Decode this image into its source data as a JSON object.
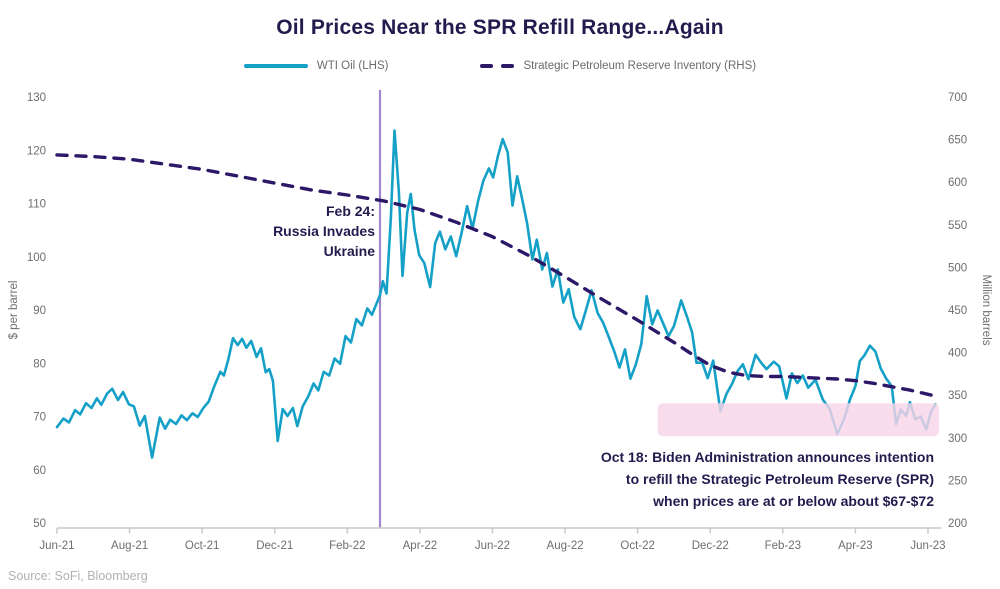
{
  "title": "Oil Prices Near the SPR Refill Range...Again",
  "legend": {
    "wti_label": "WTI Oil (LHS)",
    "spr_label": "Strategic Petroleum Reserve Inventory (RHS)"
  },
  "source": "Source: SoFi, Bloomberg",
  "colors": {
    "navy": "#221b4e",
    "wti": "#14a0c7",
    "spr": "#2d1868",
    "event_line": "#a188cd",
    "band": "#f9d4e9",
    "axis_text": "#6e6e6e",
    "axis_line": "#c9c9c9"
  },
  "chart_data": {
    "type": "line",
    "title": "Oil Prices Near the SPR Refill Range...Again",
    "x_unit": "months since Jun-2021",
    "x_ticks": {
      "months": [
        0,
        2,
        4,
        6,
        8,
        10,
        12,
        14,
        16,
        18,
        20,
        22,
        24
      ],
      "labels": [
        "Jun-21",
        "Aug-21",
        "Oct-21",
        "Dec-21",
        "Feb-22",
        "Apr-22",
        "Jun-22",
        "Aug-22",
        "Oct-22",
        "Dec-22",
        "Feb-23",
        "Apr-23",
        "Jun-23"
      ]
    },
    "left_axis": {
      "label": "$ per barrel",
      "min": 50,
      "max": 130,
      "tick_step": 10
    },
    "right_axis": {
      "label": "Million barrels",
      "min": 200,
      "max": 700,
      "tick_step": 50
    },
    "grid": false,
    "legend_position": "top-center",
    "series": [
      {
        "name": "WTI Oil (LHS)",
        "axis": "left",
        "style": "solid",
        "color": "#14a0c7",
        "points": [
          [
            0,
            68
          ],
          [
            0.18,
            69.6
          ],
          [
            0.33,
            68.9
          ],
          [
            0.5,
            71.2
          ],
          [
            0.64,
            70.4
          ],
          [
            0.8,
            72.5
          ],
          [
            0.95,
            71.6
          ],
          [
            1.1,
            73.4
          ],
          [
            1.22,
            72.2
          ],
          [
            1.38,
            74.3
          ],
          [
            1.52,
            75.2
          ],
          [
            1.68,
            73.1
          ],
          [
            1.82,
            74.6
          ],
          [
            1.98,
            72.3
          ],
          [
            2.12,
            71.9
          ],
          [
            2.28,
            68.3
          ],
          [
            2.42,
            70.1
          ],
          [
            2.62,
            62.3
          ],
          [
            2.83,
            69.8
          ],
          [
            2.98,
            67.7
          ],
          [
            3.12,
            69.4
          ],
          [
            3.28,
            68.6
          ],
          [
            3.43,
            70.2
          ],
          [
            3.58,
            69.3
          ],
          [
            3.73,
            70.6
          ],
          [
            3.88,
            69.9
          ],
          [
            4.03,
            71.6
          ],
          [
            4.18,
            72.8
          ],
          [
            4.33,
            75.6
          ],
          [
            4.5,
            78.4
          ],
          [
            4.6,
            77.7
          ],
          [
            4.72,
            80.7
          ],
          [
            4.85,
            84.7
          ],
          [
            4.98,
            83.4
          ],
          [
            5.1,
            84.6
          ],
          [
            5.22,
            82.9
          ],
          [
            5.35,
            84.2
          ],
          [
            5.5,
            81.2
          ],
          [
            5.62,
            82.8
          ],
          [
            5.75,
            78.3
          ],
          [
            5.85,
            78.9
          ],
          [
            5.95,
            76.7
          ],
          [
            6.08,
            65.4
          ],
          [
            6.22,
            71.4
          ],
          [
            6.35,
            70.1
          ],
          [
            6.5,
            71.6
          ],
          [
            6.62,
            68.2
          ],
          [
            6.77,
            71.9
          ],
          [
            6.92,
            73.7
          ],
          [
            7.07,
            76.2
          ],
          [
            7.2,
            74.9
          ],
          [
            7.35,
            78.4
          ],
          [
            7.5,
            77.7
          ],
          [
            7.65,
            80.9
          ],
          [
            7.8,
            79.9
          ],
          [
            7.95,
            85.1
          ],
          [
            8.1,
            83.9
          ],
          [
            8.25,
            88.3
          ],
          [
            8.4,
            87.1
          ],
          [
            8.55,
            90.3
          ],
          [
            8.68,
            89.1
          ],
          [
            8.9,
            92.8
          ],
          [
            8.98,
            95.4
          ],
          [
            9.08,
            93.1
          ],
          [
            9.2,
            107.5
          ],
          [
            9.3,
            123.7
          ],
          [
            9.42,
            112.1
          ],
          [
            9.52,
            96.4
          ],
          [
            9.65,
            108.3
          ],
          [
            9.75,
            111.8
          ],
          [
            9.85,
            105.1
          ],
          [
            9.98,
            100.3
          ],
          [
            10.12,
            98.8
          ],
          [
            10.28,
            94.3
          ],
          [
            10.42,
            102.6
          ],
          [
            10.55,
            104.7
          ],
          [
            10.7,
            101.4
          ],
          [
            10.85,
            103.8
          ],
          [
            11,
            100.1
          ],
          [
            11.15,
            104.6
          ],
          [
            11.3,
            109.5
          ],
          [
            11.45,
            105.3
          ],
          [
            11.6,
            110.4
          ],
          [
            11.75,
            114.3
          ],
          [
            11.9,
            116.6
          ],
          [
            12.02,
            114.9
          ],
          [
            12.15,
            118.9
          ],
          [
            12.28,
            122.1
          ],
          [
            12.42,
            119.6
          ],
          [
            12.55,
            109.6
          ],
          [
            12.68,
            115.1
          ],
          [
            12.82,
            110.7
          ],
          [
            12.95,
            106.4
          ],
          [
            13.1,
            99.5
          ],
          [
            13.22,
            103.2
          ],
          [
            13.37,
            97.6
          ],
          [
            13.5,
            100.7
          ],
          [
            13.65,
            94.4
          ],
          [
            13.8,
            97.6
          ],
          [
            13.95,
            91.4
          ],
          [
            14.1,
            93.9
          ],
          [
            14.25,
            88.7
          ],
          [
            14.42,
            86.4
          ],
          [
            14.58,
            90.1
          ],
          [
            14.73,
            93.7
          ],
          [
            14.9,
            89.4
          ],
          [
            15.05,
            87.6
          ],
          [
            15.2,
            85
          ],
          [
            15.35,
            82.3
          ],
          [
            15.5,
            79.2
          ],
          [
            15.65,
            82.6
          ],
          [
            15.8,
            77.1
          ],
          [
            15.95,
            79.8
          ],
          [
            16.1,
            83.6
          ],
          [
            16.25,
            92.6
          ],
          [
            16.4,
            87.3
          ],
          [
            16.55,
            89.9
          ],
          [
            16.7,
            87.5
          ],
          [
            16.85,
            85.1
          ],
          [
            17,
            87
          ],
          [
            17.2,
            91.8
          ],
          [
            17.35,
            88.9
          ],
          [
            17.5,
            85.8
          ],
          [
            17.62,
            80.1
          ],
          [
            17.78,
            80.1
          ],
          [
            17.93,
            77.2
          ],
          [
            18.08,
            80.5
          ],
          [
            18.28,
            71
          ],
          [
            18.45,
            74.3
          ],
          [
            18.6,
            76.1
          ],
          [
            18.75,
            78.5
          ],
          [
            18.9,
            79.8
          ],
          [
            19.05,
            77
          ],
          [
            19.25,
            81.6
          ],
          [
            19.4,
            80.1
          ],
          [
            19.55,
            78.9
          ],
          [
            19.75,
            80.3
          ],
          [
            19.9,
            79.4
          ],
          [
            20.1,
            73.4
          ],
          [
            20.25,
            78.1
          ],
          [
            20.4,
            76.3
          ],
          [
            20.55,
            77.7
          ],
          [
            20.7,
            75.4
          ],
          [
            20.9,
            76.9
          ],
          [
            21.1,
            73.2
          ],
          [
            21.3,
            71.3
          ],
          [
            21.5,
            66.7
          ],
          [
            21.7,
            69.7
          ],
          [
            21.85,
            73.2
          ],
          [
            22,
            75.7
          ],
          [
            22.12,
            80.4
          ],
          [
            22.25,
            81.5
          ],
          [
            22.4,
            83.3
          ],
          [
            22.55,
            82.2
          ],
          [
            22.7,
            79
          ],
          [
            22.85,
            77.1
          ],
          [
            23,
            75.7
          ],
          [
            23.12,
            68.6
          ],
          [
            23.25,
            71.3
          ],
          [
            23.4,
            70.1
          ],
          [
            23.5,
            72.7
          ],
          [
            23.65,
            69.5
          ],
          [
            23.8,
            70
          ],
          [
            23.95,
            67.6
          ],
          [
            24.08,
            70.8
          ],
          [
            24.2,
            72.3
          ]
        ]
      },
      {
        "name": "Strategic Petroleum Reserve Inventory (RHS)",
        "axis": "right",
        "style": "dashed",
        "color": "#2d1868",
        "points": [
          [
            0,
            632
          ],
          [
            1,
            630
          ],
          [
            2,
            627
          ],
          [
            3,
            621
          ],
          [
            4,
            615
          ],
          [
            5,
            607
          ],
          [
            6,
            599
          ],
          [
            7,
            591
          ],
          [
            8,
            585
          ],
          [
            9,
            578
          ],
          [
            10,
            568
          ],
          [
            11,
            553
          ],
          [
            12,
            536
          ],
          [
            13,
            514
          ],
          [
            14,
            489
          ],
          [
            15,
            463
          ],
          [
            16,
            438
          ],
          [
            16.5,
            425
          ],
          [
            17,
            412
          ],
          [
            17.5,
            398
          ],
          [
            18,
            385
          ],
          [
            18.5,
            377
          ],
          [
            19,
            373
          ],
          [
            19.5,
            372
          ],
          [
            20,
            372
          ],
          [
            20.5,
            371
          ],
          [
            21,
            370
          ],
          [
            21.5,
            369
          ],
          [
            22,
            367
          ],
          [
            22.5,
            364
          ],
          [
            23,
            360
          ],
          [
            23.5,
            356
          ],
          [
            24,
            351
          ],
          [
            24.2,
            349
          ]
        ]
      }
    ],
    "annotations": {
      "event_line": {
        "month": 8.9,
        "lines": [
          "Feb 24:",
          "Russia Invades",
          "Ukraine"
        ]
      },
      "refill_band": {
        "from_month": 16.55,
        "to_month": 24.3,
        "price_top": 72.5,
        "price_bottom": 66.3
      },
      "refill_note": {
        "lines": [
          "Oct 18: Biden Administration announces intention",
          "to refill the Strategic Petroleum Reserve (SPR)",
          "when prices are at or below about $67-$72"
        ]
      }
    }
  }
}
